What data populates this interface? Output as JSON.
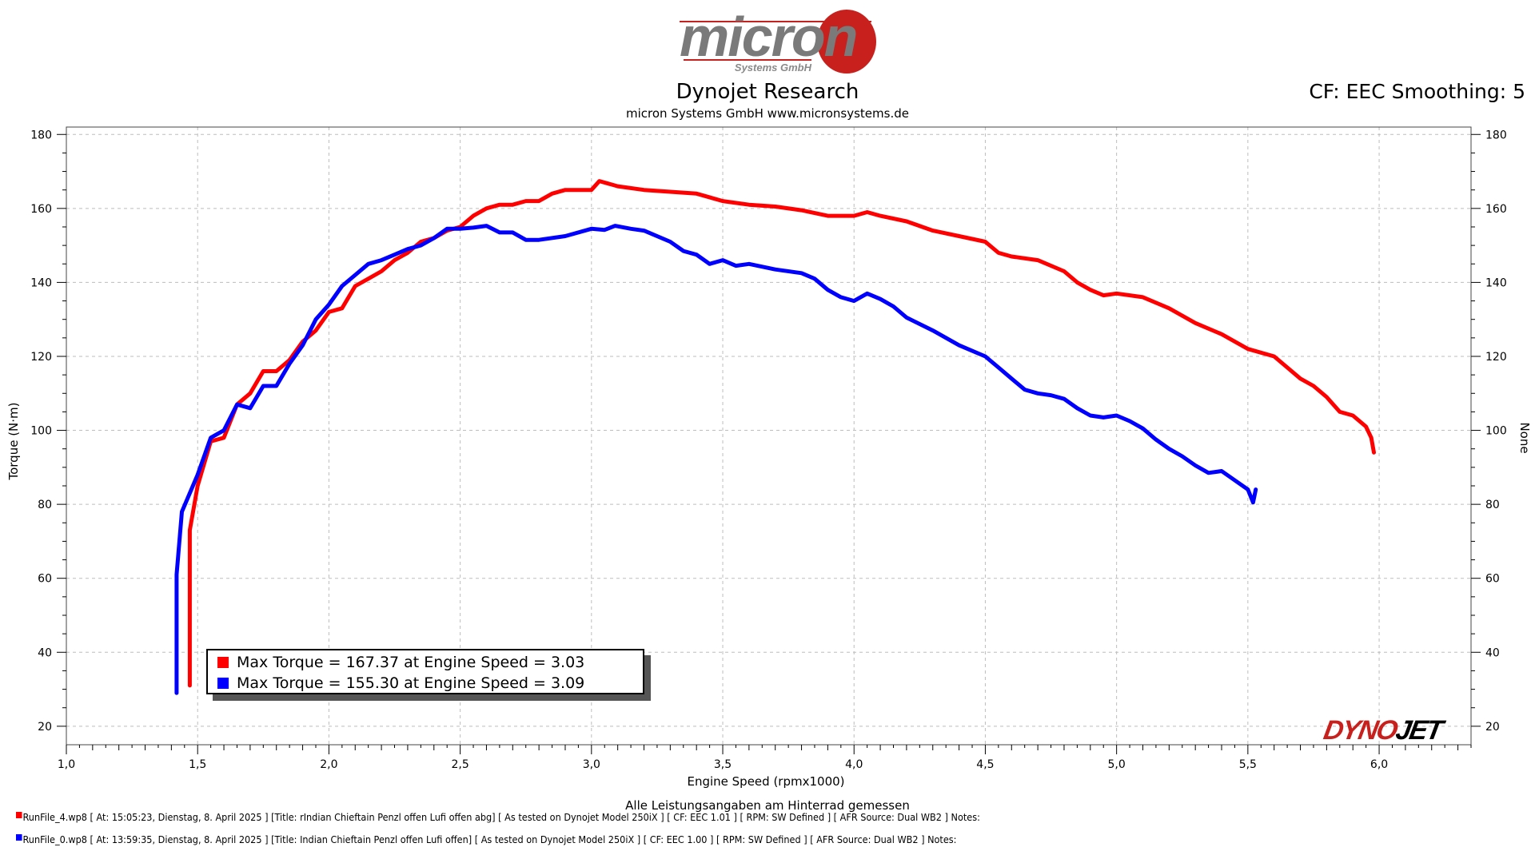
{
  "header": {
    "logo_text": "micron",
    "logo_subtext": "Systems GmbH",
    "title": "Dynojet Research",
    "subtitle": "micron Systems GmbH  www.micronsystems.de",
    "cf_label": "CF: EEC Smoothing: 5"
  },
  "legend": {
    "items": [
      {
        "text": "Max Torque = 167.37 at Engine Speed = 3.03",
        "color": "#ff0000"
      },
      {
        "text": "Max Torque = 155.30 at Engine Speed = 3.09",
        "color": "#0000ff"
      }
    ]
  },
  "footer": {
    "note": "Alle Leistungsangaben am Hinterrad gemessen",
    "run1": "RunFile_4.wp8 [ At: 15:05:23, Dienstag, 8. April 2025 ] [Title: rIndian Chieftain Penzl offen Lufi offen abg]  [ As tested on Dynojet Model 250iX ] [ CF: EEC 1.01 ] [ RPM: SW Defined ] [ AFR Source: Dual WB2 ] Notes:",
    "run2": "RunFile_0.wp8 [ At: 13:59:35, Dienstag, 8. April 2025 ] [Title: Indian Chieftain Penzl offen Lufi offen]  [ As tested on Dynojet Model 250iX ] [ CF: EEC 1.00 ] [ RPM: SW Defined ] [ AFR Source: Dual WB2 ] Notes:",
    "dynojet_logo": "DYNOJET"
  },
  "chart_data": {
    "type": "line",
    "xlabel": "Engine Speed (rpmx1000)",
    "ylabel": "Torque (N·m)",
    "ylabel_right": "None",
    "xlim": [
      1.0,
      6.35
    ],
    "ylim": [
      15,
      182
    ],
    "x_ticks": [
      "1,0",
      "1,5",
      "2,0",
      "2,5",
      "3,0",
      "3,5",
      "4,0",
      "4,5",
      "5,0",
      "5,5",
      "6,0"
    ],
    "y_ticks": [
      20,
      40,
      60,
      80,
      100,
      120,
      140,
      160,
      180
    ],
    "grid": true,
    "legend_position": "bottom-left",
    "series": [
      {
        "color": "#ff0000",
        "points": [
          [
            1.47,
            31
          ],
          [
            1.47,
            73
          ],
          [
            1.5,
            85
          ],
          [
            1.55,
            97
          ],
          [
            1.6,
            98
          ],
          [
            1.65,
            107
          ],
          [
            1.7,
            110
          ],
          [
            1.75,
            116
          ],
          [
            1.8,
            116
          ],
          [
            1.85,
            119
          ],
          [
            1.9,
            124
          ],
          [
            1.95,
            127
          ],
          [
            2.0,
            132
          ],
          [
            2.05,
            133
          ],
          [
            2.1,
            139
          ],
          [
            2.15,
            141
          ],
          [
            2.2,
            143
          ],
          [
            2.25,
            146
          ],
          [
            2.3,
            148
          ],
          [
            2.35,
            151
          ],
          [
            2.4,
            152
          ],
          [
            2.45,
            154
          ],
          [
            2.5,
            155
          ],
          [
            2.55,
            158
          ],
          [
            2.6,
            160
          ],
          [
            2.65,
            161
          ],
          [
            2.7,
            161
          ],
          [
            2.75,
            162
          ],
          [
            2.8,
            162
          ],
          [
            2.85,
            164
          ],
          [
            2.9,
            165
          ],
          [
            2.95,
            165
          ],
          [
            3.0,
            165
          ],
          [
            3.03,
            167.4
          ],
          [
            3.1,
            166
          ],
          [
            3.2,
            165
          ],
          [
            3.3,
            164.5
          ],
          [
            3.4,
            164
          ],
          [
            3.5,
            162
          ],
          [
            3.6,
            161
          ],
          [
            3.7,
            160.5
          ],
          [
            3.8,
            159.5
          ],
          [
            3.9,
            158
          ],
          [
            4.0,
            158
          ],
          [
            4.05,
            159
          ],
          [
            4.1,
            158
          ],
          [
            4.2,
            156.5
          ],
          [
            4.3,
            154
          ],
          [
            4.4,
            152.5
          ],
          [
            4.5,
            151
          ],
          [
            4.55,
            148
          ],
          [
            4.6,
            147
          ],
          [
            4.7,
            146
          ],
          [
            4.8,
            143
          ],
          [
            4.85,
            140
          ],
          [
            4.9,
            138
          ],
          [
            4.95,
            136.5
          ],
          [
            5.0,
            137
          ],
          [
            5.1,
            136
          ],
          [
            5.2,
            133
          ],
          [
            5.3,
            129
          ],
          [
            5.4,
            126
          ],
          [
            5.5,
            122
          ],
          [
            5.6,
            120
          ],
          [
            5.65,
            117
          ],
          [
            5.7,
            114
          ],
          [
            5.75,
            112
          ],
          [
            5.8,
            109
          ],
          [
            5.85,
            105
          ],
          [
            5.9,
            104
          ],
          [
            5.95,
            101
          ],
          [
            5.97,
            98
          ],
          [
            5.98,
            94
          ]
        ]
      },
      {
        "color": "#0000ff",
        "points": [
          [
            1.42,
            29
          ],
          [
            1.42,
            61
          ],
          [
            1.44,
            78
          ],
          [
            1.5,
            88
          ],
          [
            1.55,
            98
          ],
          [
            1.6,
            100
          ],
          [
            1.65,
            107
          ],
          [
            1.7,
            106
          ],
          [
            1.75,
            112
          ],
          [
            1.8,
            112
          ],
          [
            1.85,
            118
          ],
          [
            1.9,
            123
          ],
          [
            1.95,
            130
          ],
          [
            2.0,
            134
          ],
          [
            2.05,
            139
          ],
          [
            2.1,
            142
          ],
          [
            2.15,
            145
          ],
          [
            2.2,
            146
          ],
          [
            2.25,
            147.5
          ],
          [
            2.3,
            149
          ],
          [
            2.35,
            150
          ],
          [
            2.4,
            152
          ],
          [
            2.45,
            154.5
          ],
          [
            2.5,
            154.5
          ],
          [
            2.55,
            154.8
          ],
          [
            2.6,
            155.3
          ],
          [
            2.65,
            153.5
          ],
          [
            2.7,
            153.5
          ],
          [
            2.75,
            151.5
          ],
          [
            2.8,
            151.5
          ],
          [
            2.9,
            152.5
          ],
          [
            3.0,
            154.5
          ],
          [
            3.05,
            154.2
          ],
          [
            3.09,
            155.3
          ],
          [
            3.15,
            154.5
          ],
          [
            3.2,
            154
          ],
          [
            3.3,
            151
          ],
          [
            3.35,
            148.5
          ],
          [
            3.4,
            147.5
          ],
          [
            3.45,
            145
          ],
          [
            3.5,
            146
          ],
          [
            3.55,
            144.5
          ],
          [
            3.6,
            145
          ],
          [
            3.7,
            143.5
          ],
          [
            3.8,
            142.5
          ],
          [
            3.85,
            141
          ],
          [
            3.9,
            138
          ],
          [
            3.95,
            136
          ],
          [
            4.0,
            135
          ],
          [
            4.05,
            137
          ],
          [
            4.1,
            135.5
          ],
          [
            4.15,
            133.5
          ],
          [
            4.2,
            130.5
          ],
          [
            4.3,
            127
          ],
          [
            4.4,
            123
          ],
          [
            4.5,
            120
          ],
          [
            4.55,
            117
          ],
          [
            4.6,
            114
          ],
          [
            4.65,
            111
          ],
          [
            4.7,
            110
          ],
          [
            4.75,
            109.5
          ],
          [
            4.8,
            108.5
          ],
          [
            4.85,
            106
          ],
          [
            4.9,
            104
          ],
          [
            4.95,
            103.5
          ],
          [
            5.0,
            104
          ],
          [
            5.05,
            102.5
          ],
          [
            5.1,
            100.5
          ],
          [
            5.15,
            97.5
          ],
          [
            5.2,
            95
          ],
          [
            5.25,
            93
          ],
          [
            5.3,
            90.5
          ],
          [
            5.35,
            88.5
          ],
          [
            5.4,
            89
          ],
          [
            5.45,
            86.5
          ],
          [
            5.5,
            84
          ],
          [
            5.52,
            80.5
          ],
          [
            5.53,
            84
          ]
        ]
      }
    ]
  }
}
